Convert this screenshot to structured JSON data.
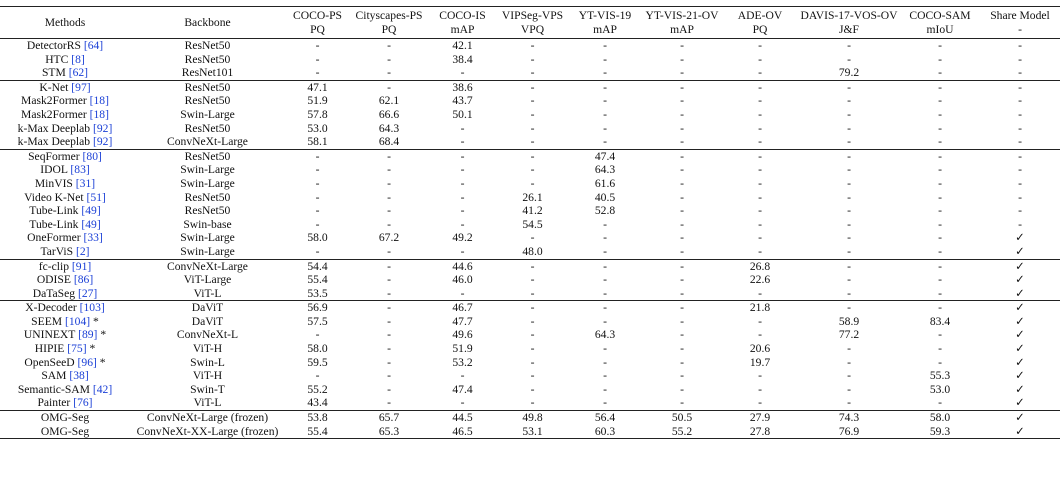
{
  "table": {
    "header": [
      [
        "Methods"
      ],
      [
        "Backbone"
      ],
      [
        "COCO-PS",
        "PQ"
      ],
      [
        "Cityscapes-PS",
        "PQ"
      ],
      [
        "COCO-IS",
        "mAP"
      ],
      [
        "VIPSeg-VPS",
        "VPQ"
      ],
      [
        "YT-VIS-19",
        "mAP"
      ],
      [
        "YT-VIS-21-OV",
        "mAP"
      ],
      [
        "ADE-OV",
        "PQ"
      ],
      [
        "DAVIS-17-VOS-OV",
        "J&F"
      ],
      [
        "COCO-SAM",
        "mIoU"
      ],
      [
        "Share Model",
        "-"
      ]
    ],
    "groups": [
      [
        {
          "method": "DetectorRS",
          "ref": "[64]",
          "cells": [
            "ResNet50",
            "-",
            "-",
            "42.1",
            "-",
            "-",
            "-",
            "-",
            "-",
            "-",
            "-"
          ]
        },
        {
          "method": "HTC",
          "ref": "[8]",
          "cells": [
            "ResNet50",
            "-",
            "-",
            "38.4",
            "-",
            "-",
            "-",
            "-",
            "-",
            "-",
            "-"
          ]
        },
        {
          "method": "STM",
          "ref": "[62]",
          "cells": [
            "ResNet101",
            "-",
            "-",
            "-",
            "-",
            "-",
            "-",
            "-",
            "79.2",
            "-",
            "-"
          ]
        }
      ],
      [
        {
          "method": "K-Net",
          "ref": "[97]",
          "cells": [
            "ResNet50",
            "47.1",
            "-",
            "38.6",
            "-",
            "-",
            "-",
            "-",
            "-",
            "-",
            "-"
          ]
        },
        {
          "method": "Mask2Former",
          "ref": "[18]",
          "cells": [
            "ResNet50",
            "51.9",
            "62.1",
            "43.7",
            "-",
            "-",
            "-",
            "-",
            "-",
            "-",
            "-"
          ]
        },
        {
          "method": "Mask2Former",
          "ref": "[18]",
          "cells": [
            "Swin-Large",
            "57.8",
            "66.6",
            "50.1",
            "-",
            "-",
            "-",
            "-",
            "-",
            "-",
            "-"
          ]
        },
        {
          "method": "k-Max Deeplab",
          "ref": "[92]",
          "cells": [
            "ResNet50",
            "53.0",
            "64.3",
            "-",
            "-",
            "-",
            "-",
            "-",
            "-",
            "-",
            "-"
          ]
        },
        {
          "method": "k-Max Deeplab",
          "ref": "[92]",
          "cells": [
            "ConvNeXt-Large",
            "58.1",
            "68.4",
            "-",
            "-",
            "-",
            "-",
            "-",
            "-",
            "-",
            "-"
          ]
        }
      ],
      [
        {
          "method": "SeqFormer",
          "ref": "[80]",
          "cells": [
            "ResNet50",
            "-",
            "-",
            "-",
            "-",
            "47.4",
            "-",
            "-",
            "-",
            "-",
            "-"
          ]
        },
        {
          "method": "IDOL",
          "ref": "[83]",
          "cells": [
            "Swin-Large",
            "-",
            "-",
            "-",
            "-",
            "64.3",
            "-",
            "-",
            "-",
            "-",
            "-"
          ]
        },
        {
          "method": "MinVIS",
          "ref": "[31]",
          "cells": [
            "Swin-Large",
            "-",
            "-",
            "-",
            "-",
            "61.6",
            "-",
            "-",
            "-",
            "-",
            "-"
          ]
        },
        {
          "method": "Video K-Net",
          "ref": "[51]",
          "cells": [
            "ResNet50",
            "-",
            "-",
            "-",
            "26.1",
            "40.5",
            "-",
            "-",
            "-",
            "-",
            "-"
          ]
        },
        {
          "method": "Tube-Link",
          "ref": "[49]",
          "cells": [
            "ResNet50",
            "-",
            "-",
            "-",
            "41.2",
            "52.8",
            "-",
            "-",
            "-",
            "-",
            "-"
          ]
        },
        {
          "method": "Tube-Link",
          "ref": "[49]",
          "cells": [
            "Swin-base",
            "-",
            "-",
            "-",
            "54.5",
            "-",
            "-",
            "-",
            "-",
            "-",
            "-"
          ]
        },
        {
          "method": "OneFormer",
          "ref": "[33]",
          "cells": [
            "Swin-Large",
            "58.0",
            "67.2",
            "49.2",
            "-",
            "-",
            "-",
            "-",
            "-",
            "-",
            "✓"
          ]
        },
        {
          "method": "TarViS",
          "ref": "[2]",
          "cells": [
            "Swin-Large",
            "-",
            "-",
            "-",
            "48.0",
            "-",
            "-",
            "-",
            "-",
            "-",
            "✓"
          ]
        }
      ],
      [
        {
          "method": "fc-clip",
          "ref": "[91]",
          "cells": [
            "ConvNeXt-Large",
            "54.4",
            "-",
            "44.6",
            "-",
            "-",
            "-",
            "26.8",
            "-",
            "-",
            "✓"
          ]
        },
        {
          "method": "ODISE",
          "ref": "[86]",
          "cells": [
            "ViT-Large",
            "55.4",
            "-",
            "46.0",
            "-",
            "-",
            "-",
            "22.6",
            "-",
            "-",
            "✓"
          ]
        },
        {
          "method": "DaTaSeg",
          "ref": "[27]",
          "cells": [
            "ViT-L",
            "53.5",
            "-",
            "-",
            "-",
            "-",
            "-",
            "-",
            "-",
            "-",
            "✓"
          ]
        }
      ],
      [
        {
          "method": "X-Decoder",
          "ref": "[103]",
          "cells": [
            "DaViT",
            "56.9",
            "-",
            "46.7",
            "-",
            "-",
            "-",
            "21.8",
            "-",
            "-",
            "✓"
          ]
        },
        {
          "method": "SEEM",
          "ref": "[104]",
          "star": "*",
          "cells": [
            "DaViT",
            "57.5",
            "-",
            "47.7",
            "-",
            "-",
            "-",
            "-",
            "58.9",
            "83.4",
            "✓"
          ]
        },
        {
          "method": "UNINEXT",
          "ref": "[89]",
          "star": "*",
          "cells": [
            "ConvNeXt-L",
            "-",
            "-",
            "49.6",
            "-",
            "64.3",
            "-",
            "-",
            "77.2",
            "-",
            "✓"
          ]
        },
        {
          "method": "HIPIE",
          "ref": "[75]",
          "star": "*",
          "cells": [
            "ViT-H",
            "58.0",
            "-",
            "51.9",
            "-",
            "-",
            "-",
            "20.6",
            "-",
            "-",
            "✓"
          ]
        },
        {
          "method": "OpenSeeD",
          "ref": "[96]",
          "star": "*",
          "cells": [
            "Swin-L",
            "59.5",
            "-",
            "53.2",
            "-",
            "-",
            "-",
            "19.7",
            "-",
            "-",
            "✓"
          ]
        },
        {
          "method": "SAM",
          "ref": "[38]",
          "cells": [
            "ViT-H",
            "-",
            "-",
            "-",
            "-",
            "-",
            "-",
            "-",
            "-",
            "55.3",
            "✓"
          ]
        },
        {
          "method": "Semantic-SAM",
          "ref": "[42]",
          "cells": [
            "Swin-T",
            "55.2",
            "-",
            "47.4",
            "-",
            "-",
            "-",
            "-",
            "-",
            "53.0",
            "✓"
          ]
        },
        {
          "method": "Painter",
          "ref": "[76]",
          "cells": [
            "ViT-L",
            "43.4",
            "-",
            "-",
            "-",
            "-",
            "-",
            "-",
            "-",
            "-",
            "✓"
          ]
        }
      ],
      [
        {
          "method": "OMG-Seg",
          "cells": [
            "ConvNeXt-Large (frozen)",
            "53.8",
            "65.7",
            "44.5",
            "49.8",
            "56.4",
            "50.5",
            "27.9",
            "74.3",
            "58.0",
            "✓"
          ]
        },
        {
          "method": "OMG-Seg",
          "cells": [
            "ConvNeXt-XX-Large (frozen)",
            "55.4",
            "65.3",
            "46.5",
            "53.1",
            "60.3",
            "55.2",
            "27.8",
            "76.9",
            "59.3",
            "✓"
          ]
        }
      ]
    ]
  }
}
